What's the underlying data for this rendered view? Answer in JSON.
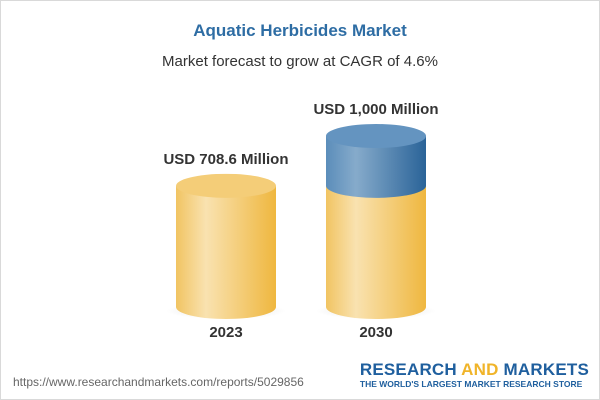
{
  "title": "Aquatic Herbicides Market",
  "subtitle": "Market forecast to grow at CAGR of 4.6%",
  "url": "https://www.researchandmarkets.com/reports/5029856",
  "logo": {
    "part1": "RESEARCH ",
    "part2": "AND",
    "part3": " MARKETS",
    "tagline": "THE WORLD'S LARGEST MARKET RESEARCH STORE"
  },
  "colors": {
    "base": "#f2c25a",
    "growth": "#4a7fb0",
    "brand": "#1f5f9e",
    "accent": "#f0b429"
  },
  "chart_data": {
    "type": "bar",
    "style": "3d-cylinder",
    "categories": [
      "2023",
      "2030"
    ],
    "values": [
      708.6,
      1000
    ],
    "data_labels": [
      "USD 708.6 Million",
      "USD 1,000 Million"
    ],
    "title": "Aquatic Herbicides Market",
    "subtitle": "Market forecast to grow at CAGR of 4.6%",
    "grid": false
  }
}
